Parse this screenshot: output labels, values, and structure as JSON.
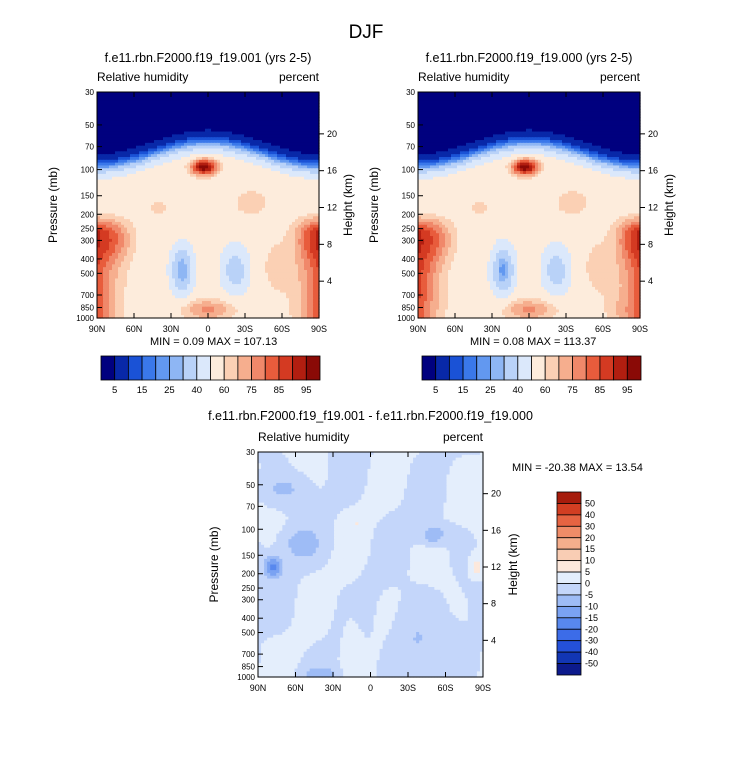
{
  "figure_title": "DJF",
  "colors": {
    "abs_palette": [
      "#00007f",
      "#0828a8",
      "#1a52d6",
      "#3a78ea",
      "#6298f0",
      "#8eb6f4",
      "#b9d2f8",
      "#dbe8fb",
      "#fdecdc",
      "#fbd0b4",
      "#f6ae8e",
      "#f0886a",
      "#e85c3c",
      "#d43a22",
      "#b21e10",
      "#8a0a06"
    ],
    "diff_palette": [
      "#0c1a8c",
      "#1236b4",
      "#2450da",
      "#3c6ce8",
      "#5888ee",
      "#7aa2f2",
      "#9ebcf6",
      "#c4d6fa",
      "#e4eefc",
      "#fce8dc",
      "#f9cdb4",
      "#f5ae8c",
      "#ef8c68",
      "#e66442",
      "#d23e22",
      "#a61c0c"
    ]
  },
  "chart_data": [
    {
      "id": "panel-top-left",
      "type": "heatmap",
      "title": "f.e11.rbn.F2000.f19_f19.001 (yrs 2-5)",
      "left_label": "Relative humidity",
      "right_label": "percent",
      "xlabel": "",
      "ylabel": "Pressure (mb)",
      "right_axis_label": "Height (km)",
      "x_ticks": [
        "90N",
        "60N",
        "30N",
        "0",
        "30S",
        "60S",
        "90S"
      ],
      "x_tick_values": [
        90,
        60,
        30,
        0,
        -30,
        -60,
        -90
      ],
      "y_ticks": [
        30,
        50,
        70,
        100,
        150,
        200,
        250,
        300,
        400,
        500,
        700,
        850,
        1000
      ],
      "height_ticks": [
        20,
        16,
        12,
        8,
        4
      ],
      "ylim": [
        1000,
        30
      ],
      "stats": "MIN =  0.09  MAX = 107.13",
      "colorbar_levels": [
        5,
        10,
        15,
        20,
        25,
        30,
        40,
        50,
        60,
        65,
        70,
        75,
        80,
        85,
        90,
        95
      ],
      "colorbar_labels": [
        "5",
        "15",
        "25",
        "40",
        "60",
        "75",
        "85",
        "95"
      ],
      "field": "abs",
      "variant": 1
    },
    {
      "id": "panel-top-right",
      "type": "heatmap",
      "title": "f.e11.rbn.F2000.f19_f19.000 (yrs 2-5)",
      "left_label": "Relative humidity",
      "right_label": "percent",
      "xlabel": "",
      "ylabel": "Pressure (mb)",
      "right_axis_label": "Height (km)",
      "x_ticks": [
        "90N",
        "60N",
        "30N",
        "0",
        "30S",
        "60S",
        "90S"
      ],
      "x_tick_values": [
        90,
        60,
        30,
        0,
        -30,
        -60,
        -90
      ],
      "y_ticks": [
        30,
        50,
        70,
        100,
        150,
        200,
        250,
        300,
        400,
        500,
        700,
        850,
        1000
      ],
      "height_ticks": [
        20,
        16,
        12,
        8,
        4
      ],
      "ylim": [
        1000,
        30
      ],
      "stats": "MIN =  0.08  MAX = 113.37",
      "colorbar_levels": [
        5,
        10,
        15,
        20,
        25,
        30,
        40,
        50,
        60,
        65,
        70,
        75,
        80,
        85,
        90,
        95
      ],
      "colorbar_labels": [
        "5",
        "15",
        "25",
        "40",
        "60",
        "75",
        "85",
        "95"
      ],
      "field": "abs",
      "variant": 2
    },
    {
      "id": "panel-bottom-diff",
      "type": "heatmap",
      "title": "f.e11.rbn.F2000.f19_f19.001 - f.e11.rbn.F2000.f19_f19.000",
      "left_label": "Relative humidity",
      "right_label": "percent",
      "xlabel": "",
      "ylabel": "Pressure (mb)",
      "right_axis_label": "Height (km)",
      "x_ticks": [
        "90N",
        "60N",
        "30N",
        "0",
        "30S",
        "60S",
        "90S"
      ],
      "x_tick_values": [
        90,
        60,
        30,
        0,
        -30,
        -60,
        -90
      ],
      "y_ticks": [
        30,
        50,
        70,
        100,
        150,
        200,
        250,
        300,
        400,
        500,
        700,
        850,
        1000
      ],
      "y_tick_labels": [
        "30",
        "50",
        "70",
        "100",
        "150",
        "200",
        "250",
        "300",
        "400",
        "500",
        "700",
        "850",
        "1000"
      ],
      "height_ticks": [
        20,
        16,
        12,
        8,
        4
      ],
      "ylim": [
        1000,
        30
      ],
      "stats": "MIN = -20.38  MAX = 13.54",
      "colorbar_levels": [
        -50,
        -40,
        -30,
        -20,
        -15,
        -10,
        -5,
        0,
        5,
        10,
        15,
        20,
        30,
        40,
        50
      ],
      "colorbar_labels": [
        "50",
        "40",
        "30",
        "20",
        "15",
        "10",
        "5",
        "0",
        "-5",
        "-10",
        "-15",
        "-20",
        "-30",
        "-40",
        "-50"
      ],
      "field": "diff",
      "variant": 3
    }
  ]
}
